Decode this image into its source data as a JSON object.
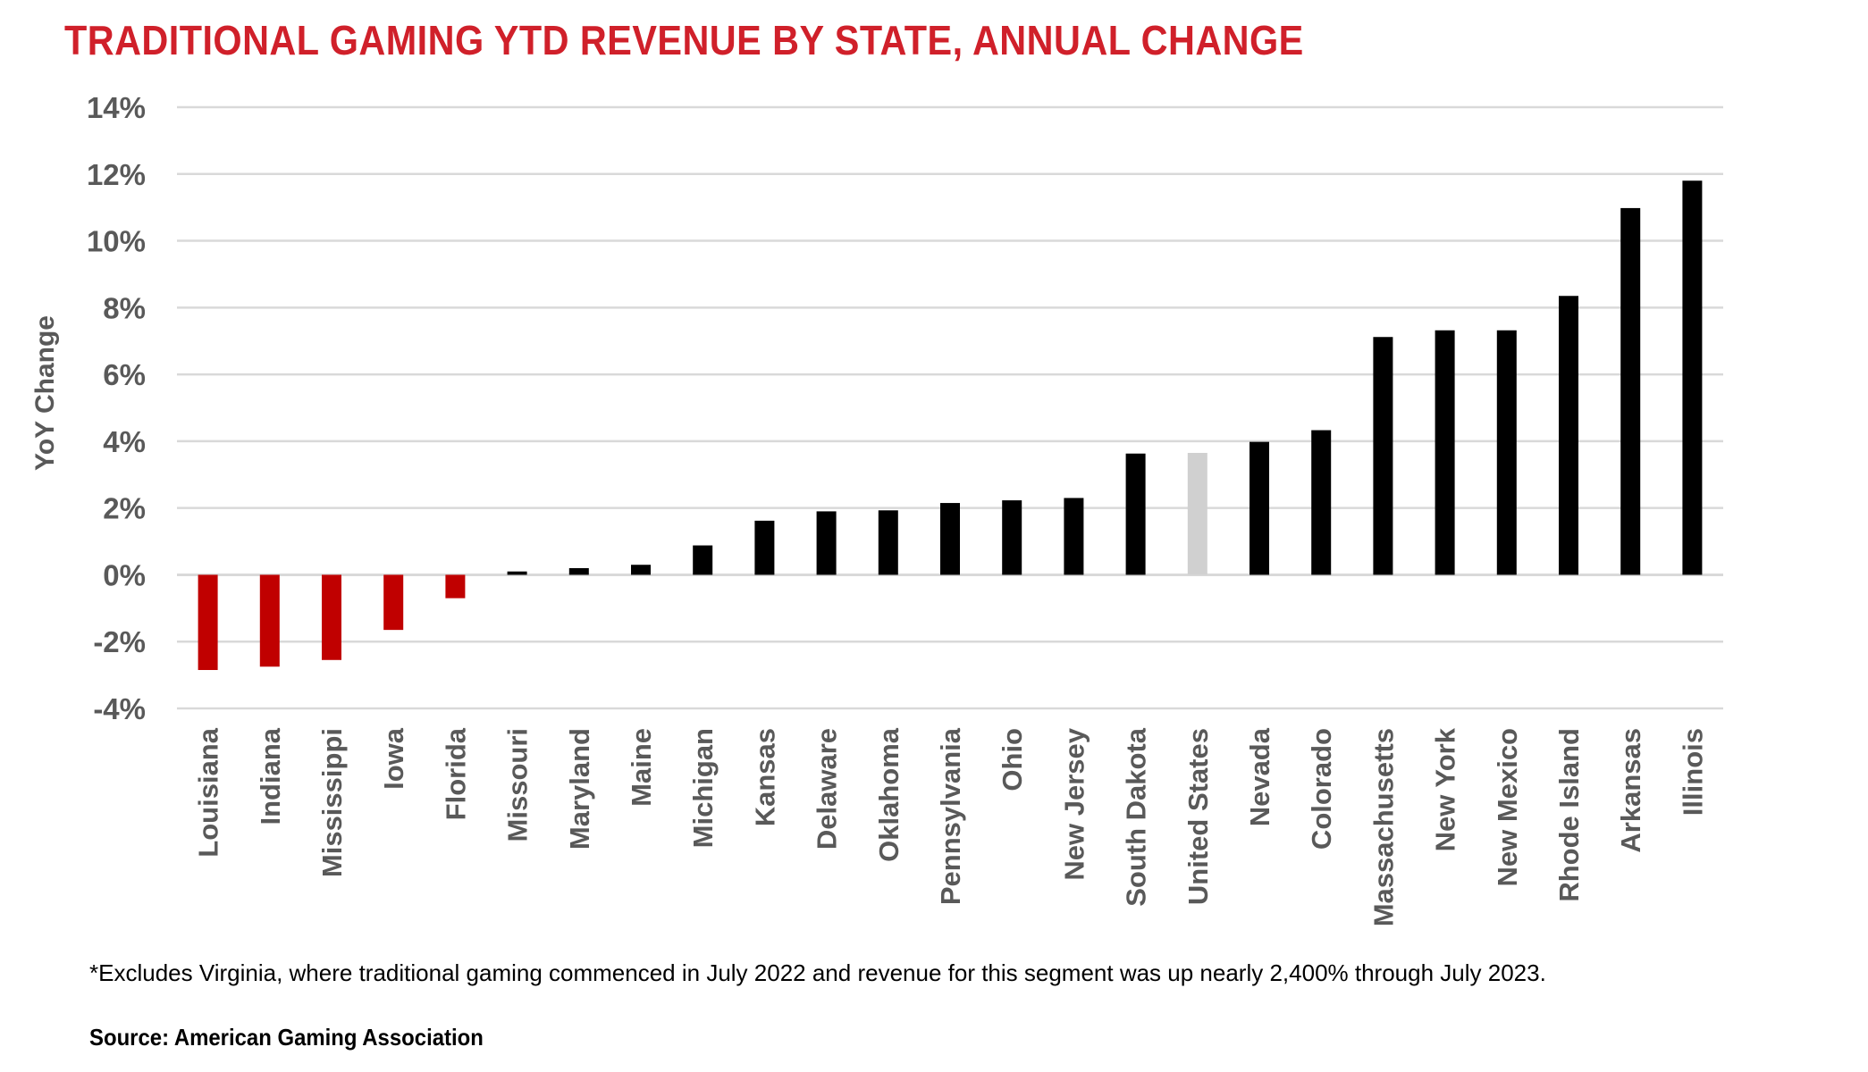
{
  "title": "TRADITIONAL GAMING YTD REVENUE BY STATE, ANNUAL CHANGE",
  "footnote": "*Excludes Virginia, where traditional gaming commenced in July 2022 and revenue for this segment was up nearly 2,400% through July 2023.",
  "source": "Source: American Gaming Association",
  "colors": {
    "title": "#d0202a",
    "negative": "#c00000",
    "positive": "#000000",
    "us_total": "#d0d0d0",
    "gridline": "#d9d9d9"
  },
  "chart_data": {
    "type": "bar",
    "title": "TRADITIONAL GAMING YTD REVENUE BY STATE, ANNUAL CHANGE",
    "xlabel": "",
    "ylabel": "YoY Change",
    "ylim": [
      -4,
      14
    ],
    "y_ticks": [
      14,
      12,
      10,
      8,
      6,
      4,
      2,
      0,
      -2,
      -4
    ],
    "y_tick_labels": [
      "14%",
      "12%",
      "10%",
      "8%",
      "6%",
      "4%",
      "2%",
      "0%",
      "-2%",
      "-4%"
    ],
    "grid": true,
    "legend": "none",
    "unit": "%",
    "categories": [
      "Louisiana",
      "Indiana",
      "Mississippi",
      "Iowa",
      "Florida",
      "Missouri",
      "Maryland",
      "Maine",
      "Michigan",
      "Kansas",
      "Delaware",
      "Oklahoma",
      "Pennsylvania",
      "Ohio",
      "New Jersey",
      "South Dakota",
      "United States",
      "Nevada",
      "Colorado",
      "Massachusetts",
      "New York",
      "New Mexico",
      "Rhode Island",
      "Arkansas",
      "Illinois"
    ],
    "values": [
      -2.85,
      -2.75,
      -2.55,
      -1.65,
      -0.7,
      0.1,
      0.2,
      0.3,
      0.88,
      1.62,
      1.9,
      1.93,
      2.15,
      2.23,
      2.3,
      3.63,
      3.65,
      3.98,
      4.33,
      7.12,
      7.32,
      7.32,
      8.35,
      10.98,
      11.8
    ],
    "highlight": "United States"
  }
}
